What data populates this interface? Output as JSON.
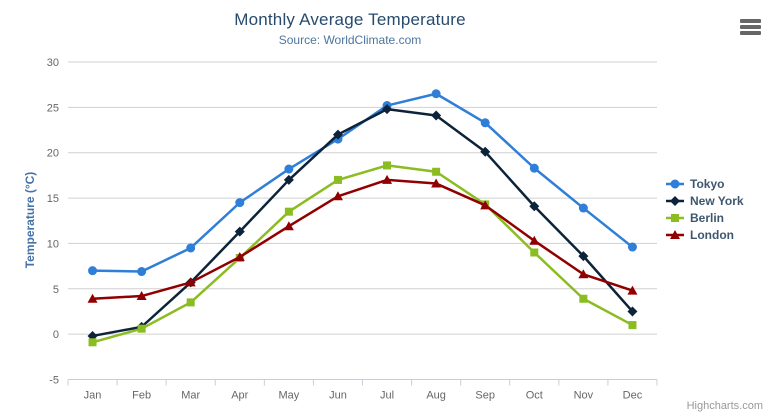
{
  "chart_data": {
    "type": "line",
    "title": "Monthly Average Temperature",
    "subtitle": "Source: WorldClimate.com",
    "ylabel": "Temperature (°C)",
    "xlabel": "",
    "categories": [
      "Jan",
      "Feb",
      "Mar",
      "Apr",
      "May",
      "Jun",
      "Jul",
      "Aug",
      "Sep",
      "Oct",
      "Nov",
      "Dec"
    ],
    "ylim": [
      -5,
      30
    ],
    "yticks": [
      30,
      25,
      20,
      15,
      10,
      5,
      0,
      -5
    ],
    "grid": true,
    "legend_position": "right",
    "series": [
      {
        "name": "Tokyo",
        "color": "#2f7ed8",
        "marker": "circle",
        "values": [
          7.0,
          6.9,
          9.5,
          14.5,
          18.2,
          21.5,
          25.2,
          26.5,
          23.3,
          18.3,
          13.9,
          9.6
        ]
      },
      {
        "name": "New York",
        "color": "#0d233a",
        "marker": "diamond",
        "values": [
          -0.2,
          0.8,
          5.7,
          11.3,
          17.0,
          22.0,
          24.8,
          24.1,
          20.1,
          14.1,
          8.6,
          2.5
        ]
      },
      {
        "name": "Berlin",
        "color": "#8bbc21",
        "marker": "square",
        "values": [
          -0.9,
          0.6,
          3.5,
          8.4,
          13.5,
          17.0,
          18.6,
          17.9,
          14.3,
          9.0,
          3.9,
          1.0
        ]
      },
      {
        "name": "London",
        "color": "#910000",
        "marker": "triangle",
        "values": [
          3.9,
          4.2,
          5.7,
          8.5,
          11.9,
          15.2,
          17.0,
          16.6,
          14.2,
          10.3,
          6.6,
          4.8
        ]
      }
    ],
    "colors": {
      "grid": "#d0d0d0",
      "axis_line": "#c0d0e0",
      "title": "#274b6d",
      "subtitle": "#4d759e",
      "axis_title": "#4572a7",
      "tick_label": "#666666"
    },
    "credit": "Highcharts.com"
  },
  "ui": {
    "context_menu_icon": "hamburger-icon"
  }
}
